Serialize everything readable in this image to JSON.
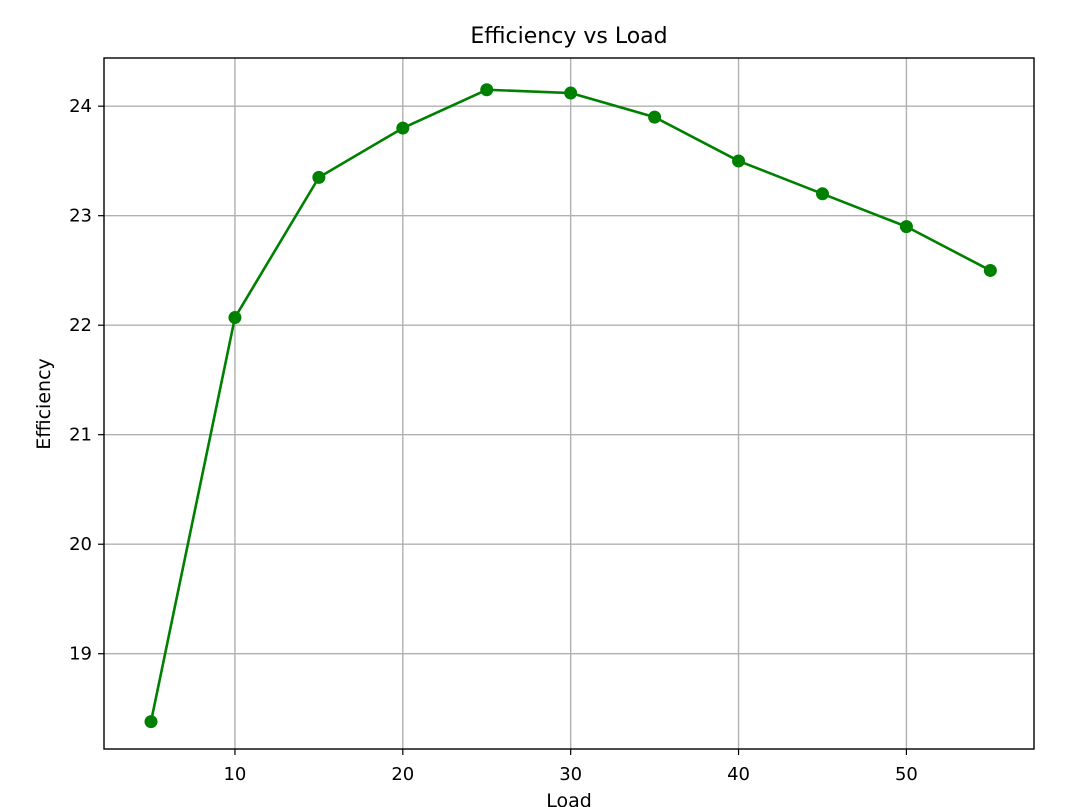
{
  "chart_data": {
    "type": "line",
    "title": "Efficiency vs Load",
    "xlabel": "Load",
    "ylabel": "Efficiency",
    "xlim": [
      2.2,
      57.6
    ],
    "ylim": [
      18.13,
      24.44
    ],
    "xticks": [
      10,
      20,
      30,
      40,
      50
    ],
    "yticks": [
      19,
      20,
      21,
      22,
      23,
      24
    ],
    "xtick_labels": [
      "10",
      "20",
      "30",
      "40",
      "50"
    ],
    "ytick_labels": [
      "19",
      "20",
      "21",
      "22",
      "23",
      "24"
    ],
    "grid": true,
    "legend": false,
    "colors": {
      "line": "#008000",
      "marker": "#008000",
      "grid": "#b0b0b0"
    },
    "series": [
      {
        "x": [
          5,
          10,
          15,
          20,
          25,
          30,
          35,
          40,
          45,
          50,
          55
        ],
        "values": [
          18.38,
          22.07,
          23.35,
          23.8,
          24.15,
          24.12,
          23.9,
          23.5,
          23.2,
          22.9,
          22.5
        ]
      }
    ]
  }
}
